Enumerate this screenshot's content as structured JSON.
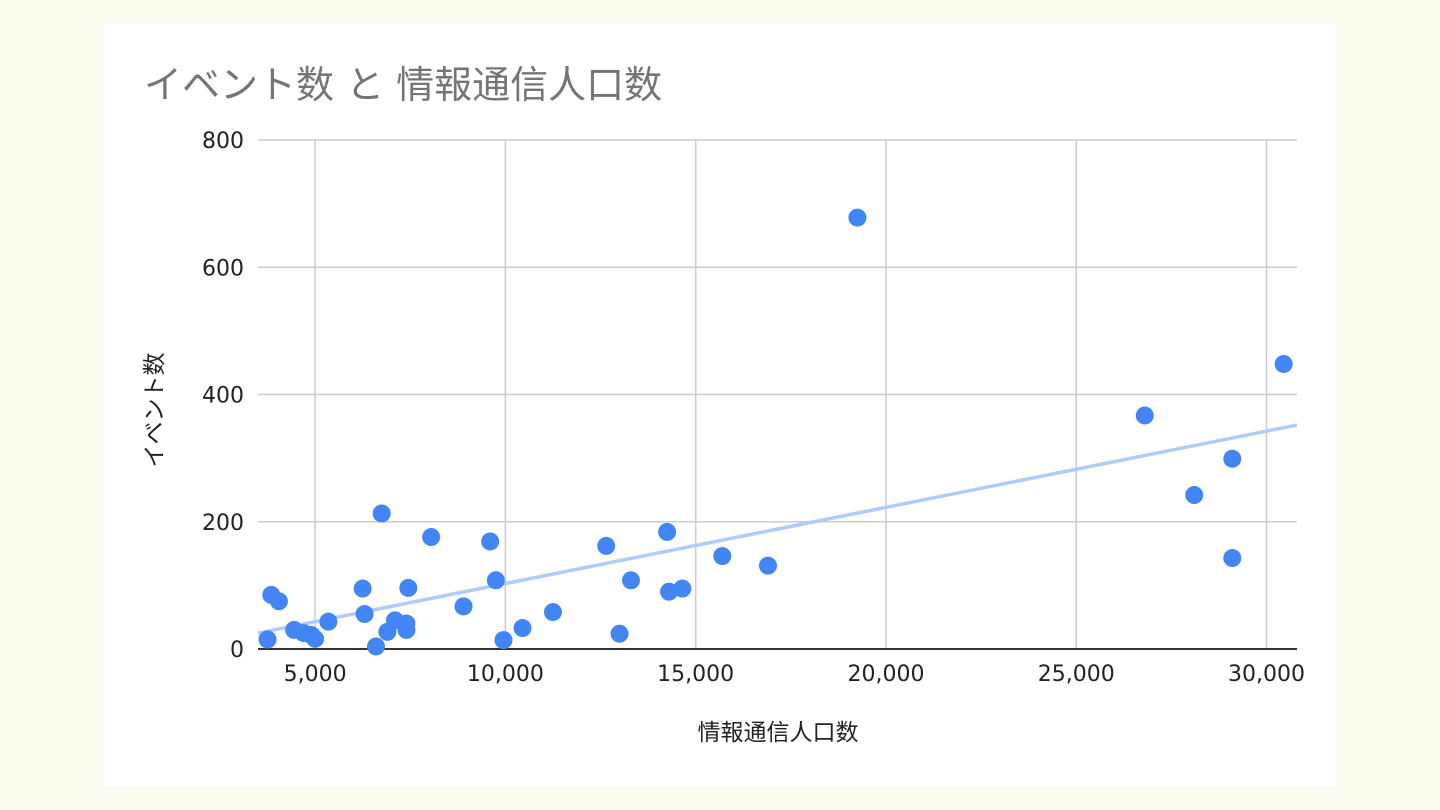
{
  "chart_data": {
    "type": "scatter",
    "title": "イベント数 と 情報通信人口数",
    "xlabel": "情報通信人口数",
    "ylabel": "イベント数",
    "xlim": [
      3500,
      30800
    ],
    "ylim": [
      0,
      800
    ],
    "x_ticks": [
      5000,
      10000,
      15000,
      20000,
      25000,
      30000
    ],
    "x_tick_labels": [
      "5,000",
      "10,000",
      "15,000",
      "20,000",
      "25,000",
      "30,000"
    ],
    "y_ticks": [
      0,
      200,
      400,
      600,
      800
    ],
    "y_tick_labels": [
      "0",
      "200",
      "400",
      "600",
      "800"
    ],
    "grid": true,
    "colors": {
      "points": "#4285f4",
      "trendline": "#aecbfa",
      "grid": "#cccccc"
    },
    "trendline": {
      "type": "linear",
      "x": [
        3500,
        30800
      ],
      "y": [
        25,
        352
      ]
    },
    "series": [
      {
        "points": [
          [
            3750,
            15
          ],
          [
            3850,
            85
          ],
          [
            4050,
            75
          ],
          [
            4450,
            30
          ],
          [
            4700,
            25
          ],
          [
            4900,
            22
          ],
          [
            5000,
            16
          ],
          [
            5350,
            43
          ],
          [
            6250,
            95
          ],
          [
            6300,
            55
          ],
          [
            6600,
            4
          ],
          [
            6750,
            213
          ],
          [
            6900,
            27
          ],
          [
            7100,
            45
          ],
          [
            7400,
            40
          ],
          [
            7400,
            30
          ],
          [
            7450,
            96
          ],
          [
            8050,
            176
          ],
          [
            8900,
            67
          ],
          [
            9600,
            169
          ],
          [
            9750,
            108
          ],
          [
            9950,
            14
          ],
          [
            10450,
            33
          ],
          [
            11250,
            58
          ],
          [
            12650,
            162
          ],
          [
            13000,
            24
          ],
          [
            13300,
            108
          ],
          [
            14250,
            184
          ],
          [
            14300,
            90
          ],
          [
            14650,
            95
          ],
          [
            15700,
            146
          ],
          [
            16900,
            131
          ],
          [
            19250,
            678
          ],
          [
            26800,
            367
          ],
          [
            28100,
            242
          ],
          [
            29100,
            299
          ],
          [
            29100,
            143
          ],
          [
            30450,
            448
          ]
        ]
      }
    ]
  }
}
